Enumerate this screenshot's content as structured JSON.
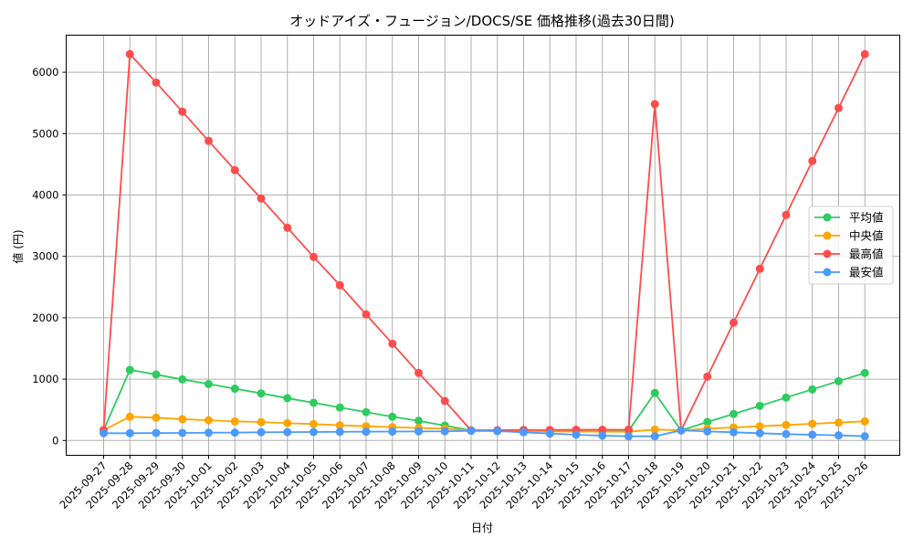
{
  "chart_data": {
    "type": "line",
    "title": "オッドアイズ・フュージョン/DOCS/SE 価格推移(過去30日間)",
    "xlabel": "日付",
    "ylabel": "値 (円)",
    "ylim": [
      -230,
      6600
    ],
    "yticks": [
      0,
      1000,
      2000,
      3000,
      4000,
      5000,
      6000
    ],
    "grid": true,
    "legend_position": "center right",
    "categories": [
      "2025-09-27",
      "2025-09-28",
      "2025-09-29",
      "2025-09-30",
      "2025-10-01",
      "2025-10-02",
      "2025-10-03",
      "2025-10-04",
      "2025-10-05",
      "2025-10-06",
      "2025-10-07",
      "2025-10-08",
      "2025-10-09",
      "2025-10-10",
      "2025-10-11",
      "2025-10-12",
      "2025-10-13",
      "2025-10-14",
      "2025-10-15",
      "2025-10-16",
      "2025-10-17",
      "2025-10-18",
      "2025-10-19",
      "2025-10-20",
      "2025-10-21",
      "2025-10-22",
      "2025-10-23",
      "2025-10-24",
      "2025-10-25",
      "2025-10-26"
    ],
    "series": [
      {
        "name": "平均値",
        "color": "#2ecc5f",
        "values": [
          170,
          1150,
          1075,
          995,
          920,
          845,
          768,
          690,
          615,
          538,
          462,
          387,
          320,
          243,
          165,
          160,
          160,
          160,
          160,
          160,
          160,
          775,
          165,
          302,
          432,
          565,
          699,
          833,
          967,
          1100
        ]
      },
      {
        "name": "中央値",
        "color": "#ffa500",
        "values": [
          170,
          387,
          372,
          348,
          330,
          312,
          300,
          283,
          268,
          248,
          232,
          218,
          203,
          193,
          165,
          155,
          150,
          148,
          145,
          145,
          143,
          178,
          165,
          193,
          213,
          232,
          253,
          272,
          292,
          312
        ]
      },
      {
        "name": "最高値",
        "color": "#ff4c4c",
        "values": [
          170,
          6295,
          5833,
          5357,
          4881,
          4405,
          3943,
          3467,
          2991,
          2530,
          2054,
          1577,
          1101,
          644,
          165,
          168,
          172,
          172,
          175,
          175,
          178,
          5480,
          165,
          1042,
          1920,
          2798,
          3676,
          4554,
          5417,
          6295
        ]
      },
      {
        "name": "最安値",
        "color": "#4c9aff",
        "values": [
          119,
          119,
          122,
          124,
          127,
          129,
          134,
          136,
          138,
          141,
          143,
          146,
          148,
          150,
          158,
          153,
          134,
          113,
          94,
          79,
          69,
          69,
          165,
          148,
          134,
          119,
          104,
          94,
          84,
          69
        ]
      }
    ]
  }
}
